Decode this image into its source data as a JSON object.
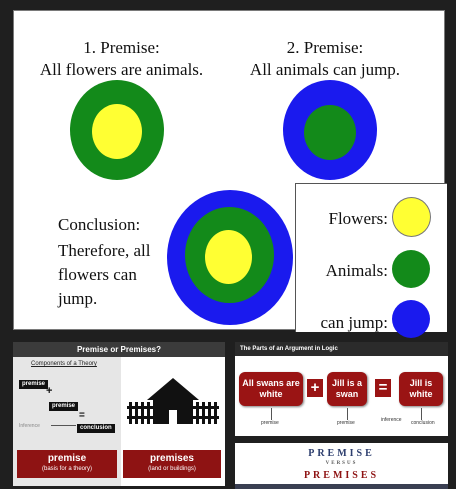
{
  "main": {
    "premise1": {
      "line1": "1. Premise:",
      "line2": "All flowers are animals."
    },
    "premise2": {
      "line1": "2. Premise:",
      "line2": "All animals can jump."
    },
    "conclusion": {
      "line1": "Conclusion:",
      "line2": "Therefore, all",
      "line3": "flowers can",
      "line4": "jump."
    },
    "legend": {
      "flowers": "Flowers:",
      "animals": "Animals:",
      "can_jump": "can jump:"
    },
    "colors": {
      "flowers": "#ffff33",
      "animals": "#138a1a",
      "can_jump": "#1a1aee"
    }
  },
  "thumb_theory": {
    "header": "Premise or Premises?",
    "subtitle": "Components of a Theory",
    "labels": {
      "premise_a": "premise",
      "premise_b": "premise",
      "inference": "Inference",
      "conclusion": "conclusion"
    },
    "plus": "+",
    "equals": "=",
    "left_box": {
      "title": "premise",
      "caption": "(basis for a theory)"
    },
    "right_box": {
      "title": "premises",
      "caption": "(land or buildings)"
    }
  },
  "thumb_argument": {
    "header": "The Parts of an Argument in Logic",
    "box1": "All swans are white",
    "box2": "Jill is a swan",
    "box3": "Jill is white",
    "plus": "+",
    "equals": "=",
    "labels": {
      "premise_a": "premise",
      "premise_b": "premise",
      "inference": "inference",
      "conclusion": "conclusion"
    }
  },
  "thumb_versus": {
    "line1": "PREMISE",
    "line2": "VERSUS",
    "line3": "PREMISES"
  }
}
